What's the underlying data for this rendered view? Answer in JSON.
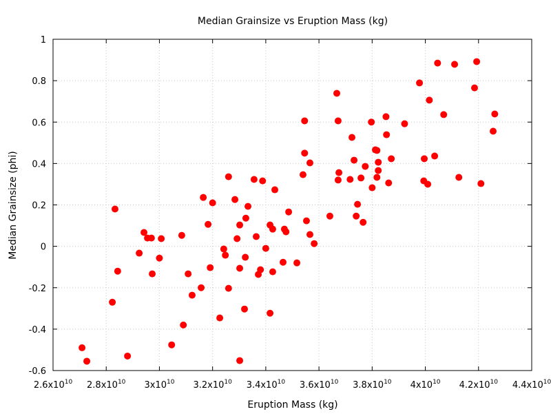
{
  "chart_data": {
    "type": "scatter",
    "title": "Median Grainsize vs Eruption Mass (kg)",
    "xlabel": "Eruption Mass (kg)",
    "ylabel": "Median Grainsize (phi)",
    "xlim": [
      26000000000.0,
      44000000000.0
    ],
    "ylim": [
      -0.6,
      1
    ],
    "grid": true,
    "marker_color": "#ff0000",
    "x_ticks": [
      {
        "value": 26000000000.0,
        "mant": "2.6x10",
        "exp": "10"
      },
      {
        "value": 28000000000.0,
        "mant": "2.8x10",
        "exp": "10"
      },
      {
        "value": 30000000000.0,
        "mant": "3x10",
        "exp": "10"
      },
      {
        "value": 32000000000.0,
        "mant": "3.2x10",
        "exp": "10"
      },
      {
        "value": 34000000000.0,
        "mant": "3.4x10",
        "exp": "10"
      },
      {
        "value": 36000000000.0,
        "mant": "3.6x10",
        "exp": "10"
      },
      {
        "value": 38000000000.0,
        "mant": "3.8x10",
        "exp": "10"
      },
      {
        "value": 40000000000.0,
        "mant": "4x10",
        "exp": "10"
      },
      {
        "value": 42000000000.0,
        "mant": "4.2x10",
        "exp": "10"
      },
      {
        "value": 44000000000.0,
        "mant": "4.4x10",
        "exp": "10"
      }
    ],
    "y_ticks": [
      {
        "value": -0.6,
        "label": "-0.6"
      },
      {
        "value": -0.4,
        "label": "-0.4"
      },
      {
        "value": -0.2,
        "label": "-0.2"
      },
      {
        "value": 0,
        "label": "0"
      },
      {
        "value": 0.2,
        "label": "0.2"
      },
      {
        "value": 0.4,
        "label": "0.4"
      },
      {
        "value": 0.6,
        "label": "0.6"
      },
      {
        "value": 0.8,
        "label": "0.8"
      },
      {
        "value": 1,
        "label": "1"
      }
    ],
    "points": [
      [
        27090000000.0,
        -0.49
      ],
      [
        27270000000.0,
        -0.555
      ],
      [
        28330000000.0,
        0.18
      ],
      [
        28430000000.0,
        -0.12
      ],
      [
        28230000000.0,
        -0.27
      ],
      [
        28800000000.0,
        -0.53
      ],
      [
        29240000000.0,
        -0.033
      ],
      [
        29420000000.0,
        0.067
      ],
      [
        29550000000.0,
        0.04
      ],
      [
        29700000000.0,
        0.04
      ],
      [
        29730000000.0,
        -0.133
      ],
      [
        30000000000.0,
        -0.057
      ],
      [
        30070000000.0,
        0.037
      ],
      [
        30460000000.0,
        -0.476
      ],
      [
        30840000000.0,
        0.053
      ],
      [
        30900000000.0,
        -0.38
      ],
      [
        31080000000.0,
        -0.133
      ],
      [
        31230000000.0,
        -0.236
      ],
      [
        31570000000.0,
        -0.2
      ],
      [
        31650000000.0,
        0.236
      ],
      [
        31830000000.0,
        0.106
      ],
      [
        31910000000.0,
        -0.103
      ],
      [
        32000000000.0,
        0.21
      ],
      [
        32270000000.0,
        -0.346
      ],
      [
        32420000000.0,
        -0.013
      ],
      [
        32480000000.0,
        -0.043
      ],
      [
        32600000000.0,
        0.336
      ],
      [
        32600000000.0,
        -0.203
      ],
      [
        32840000000.0,
        0.226
      ],
      [
        32920000000.0,
        0.037
      ],
      [
        33020000000.0,
        0.103
      ],
      [
        33020000000.0,
        -0.106
      ],
      [
        33020000000.0,
        -0.552
      ],
      [
        33200000000.0,
        -0.303
      ],
      [
        33230000000.0,
        -0.053
      ],
      [
        33250000000.0,
        0.136
      ],
      [
        33330000000.0,
        0.193
      ],
      [
        33560000000.0,
        0.323
      ],
      [
        33640000000.0,
        0.047
      ],
      [
        33720000000.0,
        -0.136
      ],
      [
        33800000000.0,
        -0.113
      ],
      [
        33880000000.0,
        0.316
      ],
      [
        34000000000.0,
        -0.01
      ],
      [
        34160000000.0,
        0.103
      ],
      [
        34160000000.0,
        -0.323
      ],
      [
        34260000000.0,
        0.083
      ],
      [
        34260000000.0,
        -0.123
      ],
      [
        34340000000.0,
        0.273
      ],
      [
        34650000000.0,
        -0.077
      ],
      [
        34700000000.0,
        0.083
      ],
      [
        34760000000.0,
        0.07
      ],
      [
        34860000000.0,
        0.166
      ],
      [
        35170000000.0,
        -0.08
      ],
      [
        35400000000.0,
        0.346
      ],
      [
        35460000000.0,
        0.606
      ],
      [
        35460000000.0,
        0.45
      ],
      [
        35530000000.0,
        0.123
      ],
      [
        35660000000.0,
        0.403
      ],
      [
        35660000000.0,
        0.057
      ],
      [
        35820000000.0,
        0.013
      ],
      [
        36410000000.0,
        0.146
      ],
      [
        36670000000.0,
        0.739
      ],
      [
        36720000000.0,
        0.606
      ],
      [
        36720000000.0,
        0.32
      ],
      [
        36750000000.0,
        0.356
      ],
      [
        37170000000.0,
        0.323
      ],
      [
        37240000000.0,
        0.526
      ],
      [
        37320000000.0,
        0.416
      ],
      [
        37400000000.0,
        0.146
      ],
      [
        37450000000.0,
        0.203
      ],
      [
        37580000000.0,
        0.33
      ],
      [
        37660000000.0,
        0.116
      ],
      [
        37740000000.0,
        0.386
      ],
      [
        37970000000.0,
        0.6
      ],
      [
        38000000000.0,
        0.283
      ],
      [
        38120000000.0,
        0.466
      ],
      [
        38180000000.0,
        0.463
      ],
      [
        38180000000.0,
        0.333
      ],
      [
        38230000000.0,
        0.406
      ],
      [
        38230000000.0,
        0.366
      ],
      [
        38520000000.0,
        0.626
      ],
      [
        38540000000.0,
        0.539
      ],
      [
        38620000000.0,
        0.306
      ],
      [
        38720000000.0,
        0.423
      ],
      [
        39220000000.0,
        0.592
      ],
      [
        39780000000.0,
        0.789
      ],
      [
        39960000000.0,
        0.423
      ],
      [
        39940000000.0,
        0.316
      ],
      [
        40090000000.0,
        0.3
      ],
      [
        40150000000.0,
        0.706
      ],
      [
        40350000000.0,
        0.436
      ],
      [
        40460000000.0,
        0.885
      ],
      [
        40690000000.0,
        0.636
      ],
      [
        41100000000.0,
        0.879
      ],
      [
        41260000000.0,
        0.333
      ],
      [
        41850000000.0,
        0.765
      ],
      [
        41930000000.0,
        0.892
      ],
      [
        42090000000.0,
        0.303
      ],
      [
        42550000000.0,
        0.556
      ],
      [
        42610000000.0,
        0.639
      ]
    ]
  }
}
